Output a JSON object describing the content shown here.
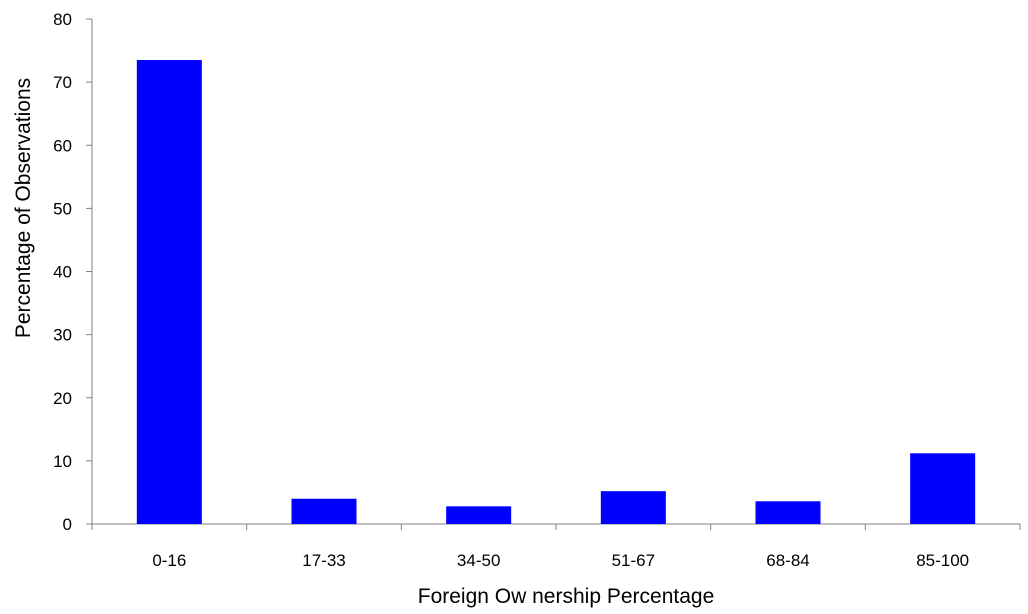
{
  "chart_data": {
    "type": "bar",
    "categories": [
      "0-16",
      "17-33",
      "34-50",
      "51-67",
      "68-84",
      "85-100"
    ],
    "series": [
      {
        "values": [
          73.5,
          4.0,
          2.8,
          5.2,
          3.6,
          11.2
        ],
        "color": "#0000FF"
      }
    ],
    "title": "",
    "xlabel": "Foreign Ow nership Percentage",
    "ylabel": "Percentage of Observations",
    "ylim": [
      0,
      80
    ],
    "yticks": [
      0,
      10,
      20,
      30,
      40,
      50,
      60,
      70,
      80
    ],
    "grid": false,
    "legend": "none",
    "axis_color": "#808080"
  }
}
